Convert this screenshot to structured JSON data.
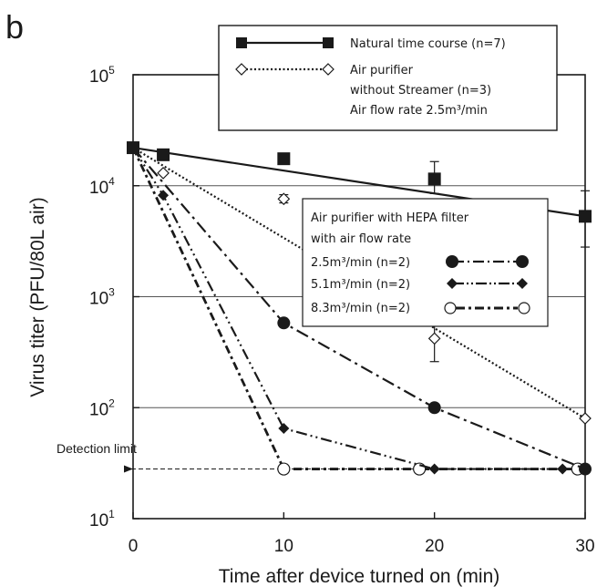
{
  "chart_data": {
    "type": "line",
    "panel_label": "b",
    "xlabel": "Time after device turned on (min)",
    "ylabel": "Virus titer (PFU/80L air)",
    "x_scale": "linear",
    "y_scale": "log",
    "xlim": [
      0,
      30
    ],
    "ylim": [
      10,
      100000
    ],
    "x_ticks": [
      "0",
      "10",
      "20",
      "30"
    ],
    "y_ticks": [
      {
        "value": 10,
        "base": "10",
        "exp": "1"
      },
      {
        "value": 100,
        "base": "10",
        "exp": "2"
      },
      {
        "value": 1000,
        "base": "10",
        "exp": "3"
      },
      {
        "value": 10000,
        "base": "10",
        "exp": "4"
      },
      {
        "value": 100000,
        "base": "10",
        "exp": "5"
      }
    ],
    "grid": "horizontal lines at 10^2, 10^3, 10^4",
    "detection_limit": {
      "label": "Detection limit",
      "value": 28
    },
    "legend_top": {
      "placement": "top",
      "entries": [
        {
          "series": 0,
          "text": "Natural time course (n=7)"
        },
        {
          "series": 1,
          "text": "Air purifier",
          "text2": "without Streamer (n=3)",
          "text3": "Air flow rate 2.5m³/min"
        }
      ]
    },
    "legend_mid": {
      "placement": "center-right",
      "title": "Air purifier with HEPA filter",
      "title2": "with air flow rate",
      "entries": [
        {
          "series": 2,
          "text": "2.5m³/min (n=2)"
        },
        {
          "series": 3,
          "text": "5.1m³/min (n=2)"
        },
        {
          "series": 4,
          "text": "8.3m³/min (n=2)"
        }
      ]
    },
    "series": [
      {
        "name": "Natural time course (n=7)",
        "marker": "square-filled",
        "line": "solid",
        "color": "#1a1a1a",
        "points": [
          {
            "x": 0,
            "y": 22000
          },
          {
            "x": 2,
            "y": 19000
          },
          {
            "x": 10,
            "y": 17500
          },
          {
            "x": 20,
            "y": 11500,
            "err": [
              8500,
              16500
            ]
          },
          {
            "x": 30,
            "y": 5300,
            "err": [
              2800,
              9000
            ]
          }
        ],
        "fit": [
          {
            "x": 0,
            "y": 22000
          },
          {
            "x": 30,
            "y": 5300
          }
        ]
      },
      {
        "name": "Air purifier without Streamer (n=3)",
        "marker": "diamond-open",
        "line": "dotted",
        "color": "#1a1a1a",
        "points": [
          {
            "x": 0,
            "y": 22000
          },
          {
            "x": 2,
            "y": 13000
          },
          {
            "x": 10,
            "y": 7600,
            "err": [
              7000,
              8300
            ]
          },
          {
            "x": 20,
            "y": 420,
            "err": [
              260,
              560
            ]
          },
          {
            "x": 30,
            "y": 80
          }
        ],
        "fit": [
          {
            "x": 0,
            "y": 22000
          },
          {
            "x": 30,
            "y": 80
          }
        ]
      },
      {
        "name": "2.5m³/min (n=2)",
        "marker": "circle-filled",
        "line": "dash-dot",
        "color": "#1a1a1a",
        "points": [
          {
            "x": 0,
            "y": 22000
          },
          {
            "x": 10,
            "y": 580
          },
          {
            "x": 20,
            "y": 100
          },
          {
            "x": 30,
            "y": 28
          }
        ]
      },
      {
        "name": "5.1m³/min (n=2)",
        "marker": "diamond-filled",
        "line": "dash-dot-dot",
        "color": "#1a1a1a",
        "points": [
          {
            "x": 0,
            "y": 22000
          },
          {
            "x": 2,
            "y": 8200
          },
          {
            "x": 10,
            "y": 65
          },
          {
            "x": 20,
            "y": 28
          },
          {
            "x": 28.5,
            "y": 28
          }
        ]
      },
      {
        "name": "8.3m³/min (n=2)",
        "marker": "circle-open",
        "line": "dashed-bold",
        "color": "#1a1a1a",
        "points": [
          {
            "x": 0,
            "y": 22000
          },
          {
            "x": 10,
            "y": 28
          },
          {
            "x": 19,
            "y": 28
          },
          {
            "x": 29.5,
            "y": 28
          }
        ]
      }
    ]
  }
}
